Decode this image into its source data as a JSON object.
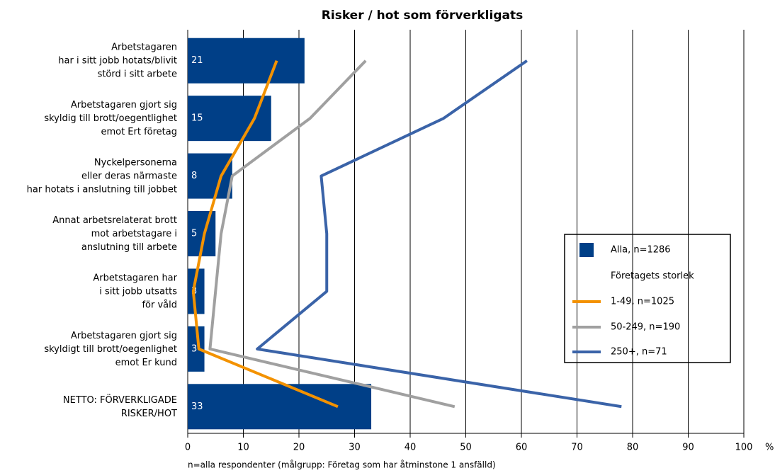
{
  "chart_data": {
    "type": "bar_line",
    "title": "Risker / hot som förverkligats",
    "categories": [
      "Arbetstagaren\nhar i sitt jobb hotats/blivit\nstörd i sitt arbete",
      "Arbetstagaren gjort sig\nskyldig till brott/oegentlighet\nemot Ert företag",
      "Nyckelpersonerna\neller deras närmaste\nhar hotats i anslutning till jobbet",
      "Annat arbetsrelaterat brott\nmot arbetstagare i\nanslutning till arbete",
      "Arbetstagaren har\ni sitt jobb utsatts\nför våld",
      "Arbetstagaren gjort sig\nskyldigt till brott/oegenlighet\nemot Er kund",
      "NETTO: FÖRVERKLIGADE\nRISKER/HOT"
    ],
    "series": [
      {
        "name": "Alla, n=1286",
        "color": "#003f87",
        "kind": "bar",
        "values": [
          21,
          15,
          8,
          5,
          3,
          3,
          33
        ]
      },
      {
        "name": "1-49, n=1025",
        "color": "#f39200",
        "kind": "line",
        "values": [
          16,
          12,
          6,
          3,
          1,
          2,
          27
        ]
      },
      {
        "name": "50-249, n=190",
        "color": "#a0a0a0",
        "kind": "line",
        "values": [
          32,
          22,
          8,
          6,
          5,
          4,
          48
        ]
      },
      {
        "name": "250+, n=71",
        "color": "#3a63a8",
        "kind": "line",
        "values": [
          61,
          46,
          24,
          25,
          25,
          12.5,
          78
        ]
      }
    ],
    "legend_subtitle": "Företagets storlek",
    "xlim": [
      0,
      100
    ],
    "xticks": [
      0,
      10,
      20,
      30,
      40,
      50,
      60,
      70,
      80,
      90,
      100
    ],
    "x_unit": "%",
    "grid": true,
    "footnote": "n=alla respondenter (målgrupp: Företag som har åtminstone 1 ansfälld)"
  }
}
